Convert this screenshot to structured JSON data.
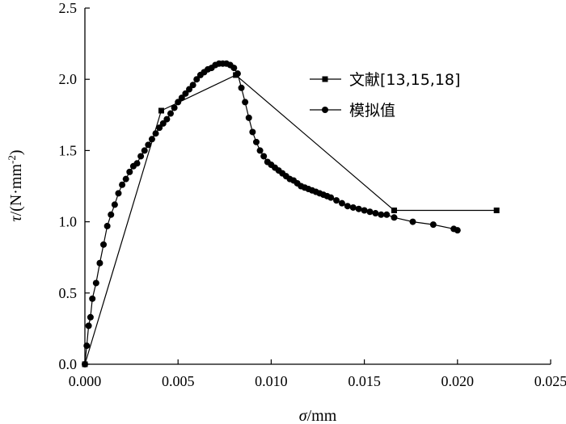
{
  "chart_data": {
    "type": "line",
    "xlabel": {
      "symbol": "σ",
      "unit": "/mm"
    },
    "ylabel": {
      "symbol": "τ",
      "unit_main": "/(N·mm",
      "unit_sup": "-2",
      "unit_close": ")"
    },
    "xlim": [
      0,
      0.025
    ],
    "ylim": [
      0,
      2.5
    ],
    "x_ticks": [
      "0.000",
      "0.005",
      "0.010",
      "0.015",
      "0.020",
      "0.025"
    ],
    "y_ticks": [
      "0.0",
      "0.5",
      "1.0",
      "1.5",
      "2.0",
      "2.5"
    ],
    "grid": false,
    "legend_position": "top-right",
    "series": [
      {
        "name": "文献[13,15,18]",
        "marker": "square",
        "x": [
          0.0,
          0.0041,
          0.0081,
          0.0166,
          0.0221
        ],
        "y": [
          0.0,
          1.78,
          2.03,
          1.08,
          1.08
        ]
      },
      {
        "name": "模拟值",
        "marker": "circle",
        "x": [
          0.0,
          0.0001,
          0.0002,
          0.0003,
          0.0004,
          0.0006,
          0.0008,
          0.001,
          0.0012,
          0.0014,
          0.0016,
          0.0018,
          0.002,
          0.0022,
          0.0024,
          0.0026,
          0.0028,
          0.003,
          0.0032,
          0.0034,
          0.0036,
          0.0038,
          0.004,
          0.0042,
          0.0044,
          0.0046,
          0.0048,
          0.005,
          0.0052,
          0.0054,
          0.0056,
          0.0058,
          0.006,
          0.0062,
          0.0064,
          0.0066,
          0.0068,
          0.007,
          0.0072,
          0.0074,
          0.0076,
          0.0078,
          0.008,
          0.0082,
          0.0084,
          0.0086,
          0.0088,
          0.009,
          0.0092,
          0.0094,
          0.0096,
          0.0098,
          0.01,
          0.0102,
          0.0104,
          0.0106,
          0.0108,
          0.011,
          0.0112,
          0.0114,
          0.0116,
          0.0118,
          0.012,
          0.0122,
          0.0124,
          0.0126,
          0.0128,
          0.013,
          0.0132,
          0.0135,
          0.0138,
          0.0141,
          0.0144,
          0.0147,
          0.015,
          0.0153,
          0.0156,
          0.0159,
          0.0162,
          0.0166,
          0.0176,
          0.0187,
          0.0198,
          0.02
        ],
        "y": [
          0.0,
          0.13,
          0.27,
          0.33,
          0.46,
          0.57,
          0.71,
          0.84,
          0.97,
          1.05,
          1.12,
          1.2,
          1.26,
          1.3,
          1.35,
          1.39,
          1.41,
          1.46,
          1.5,
          1.54,
          1.58,
          1.62,
          1.66,
          1.69,
          1.72,
          1.76,
          1.8,
          1.84,
          1.87,
          1.9,
          1.93,
          1.96,
          2.0,
          2.03,
          2.05,
          2.07,
          2.08,
          2.1,
          2.11,
          2.11,
          2.11,
          2.1,
          2.08,
          2.04,
          1.94,
          1.84,
          1.73,
          1.63,
          1.56,
          1.5,
          1.46,
          1.42,
          1.4,
          1.38,
          1.36,
          1.34,
          1.32,
          1.3,
          1.29,
          1.27,
          1.25,
          1.24,
          1.23,
          1.22,
          1.21,
          1.2,
          1.19,
          1.18,
          1.17,
          1.15,
          1.13,
          1.11,
          1.1,
          1.09,
          1.08,
          1.07,
          1.06,
          1.05,
          1.05,
          1.03,
          1.0,
          0.98,
          0.95,
          0.94
        ]
      }
    ]
  }
}
